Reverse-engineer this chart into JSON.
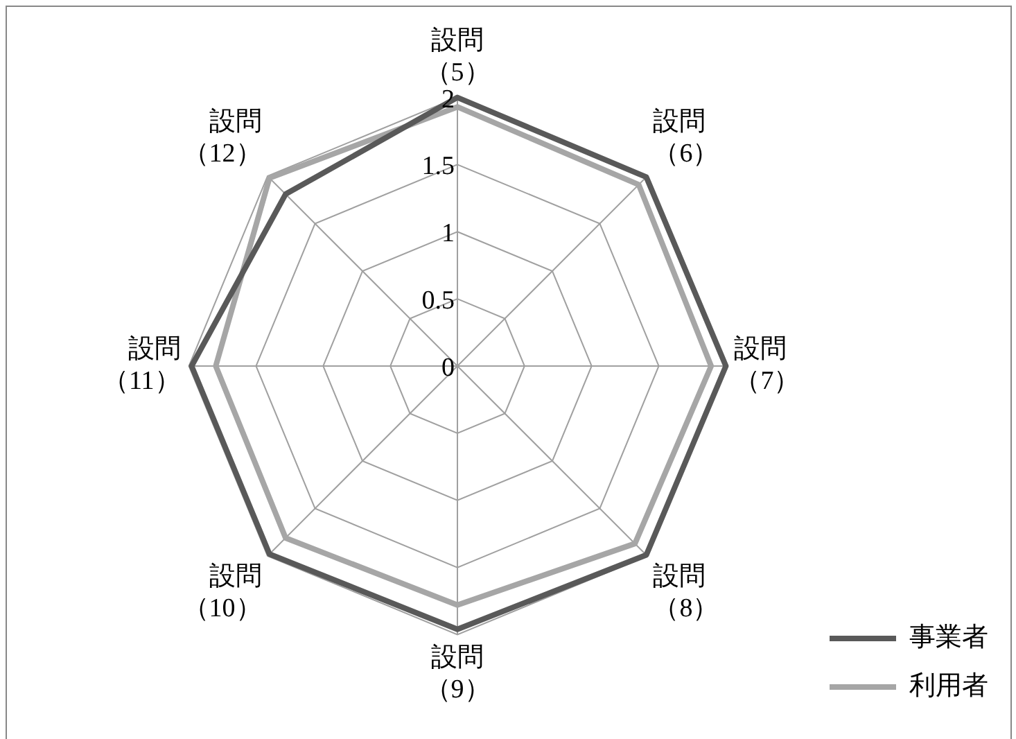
{
  "chart_data": {
    "type": "radar",
    "categories": [
      "設問（5）",
      "設問（6）",
      "設問（7）",
      "設問（8）",
      "設問（9）",
      "設問（10）",
      "設問（11）",
      "設問（12）"
    ],
    "series": [
      {
        "name": "事業者",
        "color": "#595959",
        "values": [
          2.0,
          1.99,
          2.0,
          1.99,
          1.96,
          1.98,
          1.98,
          1.81
        ]
      },
      {
        "name": "利用者",
        "color": "#a6a6a6",
        "values": [
          1.93,
          1.91,
          1.89,
          1.87,
          1.78,
          1.81,
          1.8,
          1.98
        ]
      }
    ],
    "ylim": [
      0,
      2
    ],
    "yticks": [
      0,
      0.5,
      1,
      1.5,
      2
    ],
    "grid": true,
    "legend": "bottom right",
    "marker": "none",
    "line_style": "solid"
  }
}
